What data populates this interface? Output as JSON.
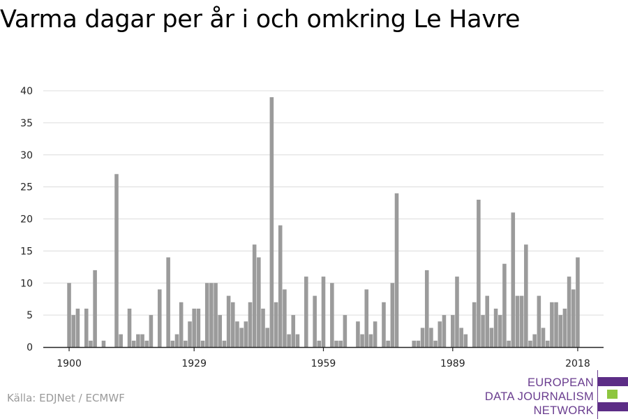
{
  "title": "Varma dagar per år i och omkring Le Havre",
  "source": "Källa: EDJNet / ECMWF",
  "logo": {
    "lines": [
      "EUROPEAN",
      "DATA JOURNALISM",
      "NETWORK"
    ],
    "text_color": "#6a3d8f",
    "bar_colors": [
      "#5c2d86",
      "#8dc63f",
      "#5c2d86"
    ]
  },
  "chart_data": {
    "type": "bar",
    "title": "Varma dagar per år i och omkring Le Havre",
    "xlabel": "",
    "ylabel": "",
    "ylim": [
      0,
      40
    ],
    "yticks": [
      0,
      5,
      10,
      15,
      20,
      25,
      30,
      35,
      40
    ],
    "xticks": [
      1900,
      1929,
      1959,
      1989,
      2018
    ],
    "xlim": [
      1894,
      2024
    ],
    "grid": true,
    "bar_color": "#9b9b9b",
    "x": [
      1900,
      1901,
      1902,
      1903,
      1904,
      1905,
      1906,
      1907,
      1908,
      1909,
      1910,
      1911,
      1912,
      1913,
      1914,
      1915,
      1916,
      1917,
      1918,
      1919,
      1920,
      1921,
      1922,
      1923,
      1924,
      1925,
      1926,
      1927,
      1928,
      1929,
      1930,
      1931,
      1932,
      1933,
      1934,
      1935,
      1936,
      1937,
      1938,
      1939,
      1940,
      1941,
      1942,
      1943,
      1944,
      1945,
      1946,
      1947,
      1948,
      1949,
      1950,
      1951,
      1952,
      1953,
      1954,
      1955,
      1956,
      1957,
      1958,
      1959,
      1960,
      1961,
      1962,
      1963,
      1964,
      1965,
      1966,
      1967,
      1968,
      1969,
      1970,
      1971,
      1972,
      1973,
      1974,
      1975,
      1976,
      1977,
      1978,
      1979,
      1980,
      1981,
      1982,
      1983,
      1984,
      1985,
      1986,
      1987,
      1988,
      1989,
      1990,
      1991,
      1992,
      1993,
      1994,
      1995,
      1996,
      1997,
      1998,
      1999,
      2000,
      2001,
      2002,
      2003,
      2004,
      2005,
      2006,
      2007,
      2008,
      2009,
      2010,
      2011,
      2012,
      2013,
      2014,
      2015,
      2016,
      2017,
      2018
    ],
    "values": [
      10,
      5,
      6,
      0,
      6,
      1,
      12,
      0,
      1,
      0,
      0,
      27,
      2,
      0,
      6,
      1,
      2,
      2,
      1,
      5,
      0,
      9,
      0,
      14,
      1,
      2,
      7,
      1,
      4,
      6,
      6,
      1,
      10,
      10,
      10,
      5,
      1,
      8,
      7,
      4,
      3,
      4,
      7,
      16,
      14,
      6,
      3,
      39,
      7,
      19,
      9,
      2,
      5,
      2,
      0,
      11,
      0,
      8,
      1,
      11,
      0,
      10,
      1,
      1,
      5,
      0,
      0,
      4,
      2,
      9,
      2,
      4,
      0,
      7,
      1,
      10,
      24,
      0,
      0,
      0,
      1,
      1,
      3,
      12,
      3,
      1,
      4,
      5,
      0,
      5,
      11,
      3,
      2,
      0,
      7,
      23,
      5,
      8,
      3,
      6,
      5,
      13,
      1,
      21,
      8,
      8,
      16,
      1,
      2,
      8,
      3,
      1,
      7,
      7,
      5,
      6,
      11,
      9,
      14
    ]
  }
}
